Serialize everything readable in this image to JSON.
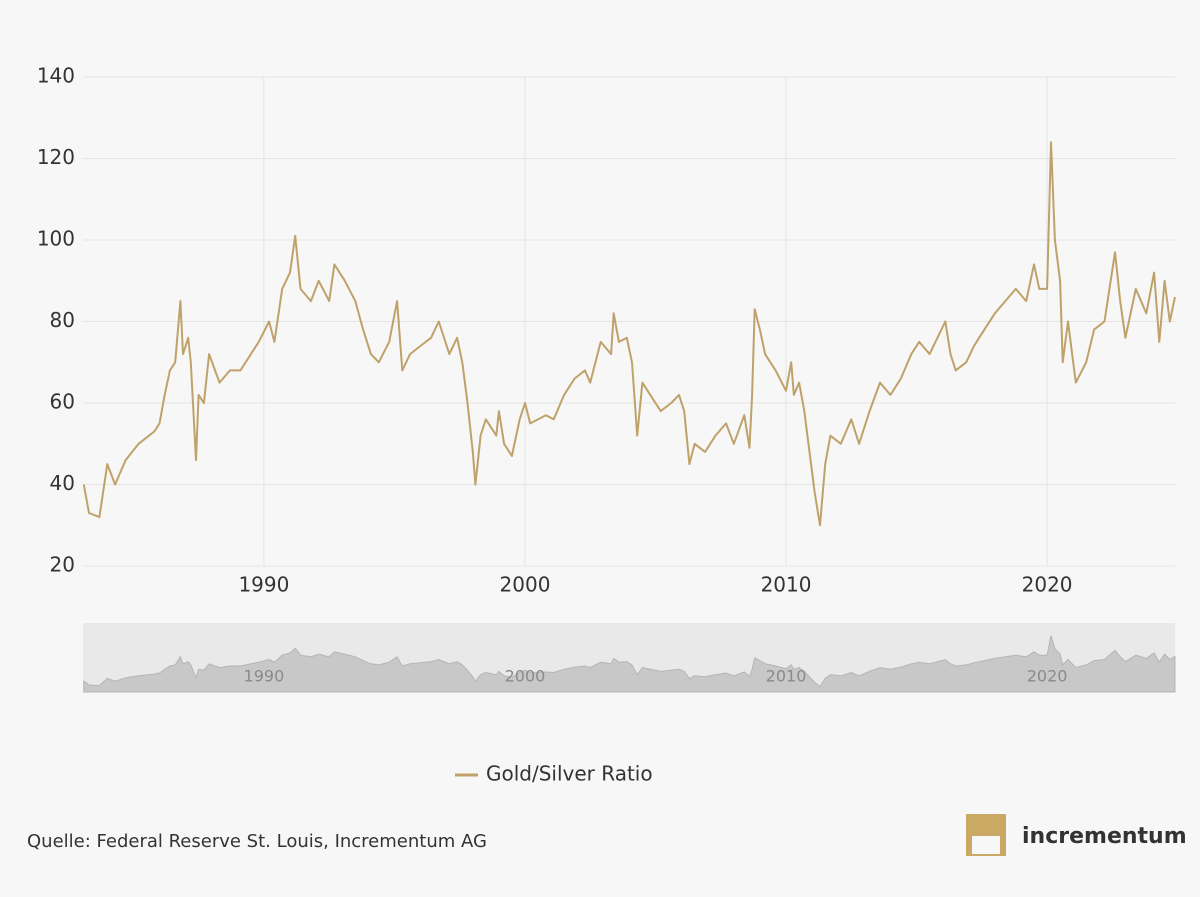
{
  "chart_data": {
    "type": "line",
    "xlim": [
      1983.07,
      2024.9
    ],
    "xticks": [
      1990,
      2000,
      2010,
      2020
    ],
    "ylim": [
      20,
      140
    ],
    "yticks": [
      20,
      40,
      60,
      80,
      100,
      120,
      140
    ],
    "grid": true,
    "legend": "bottom",
    "series": [
      {
        "name": "Gold/Silver Ratio",
        "color": "#bfa26a",
        "x": [
          1983.1,
          1983.3,
          1983.7,
          1984.0,
          1984.3,
          1984.7,
          1985.2,
          1985.8,
          1986.0,
          1986.2,
          1986.4,
          1986.6,
          1986.8,
          1986.9,
          1987.1,
          1987.2,
          1987.4,
          1987.5,
          1987.7,
          1987.9,
          1988.3,
          1988.7,
          1989.1,
          1989.5,
          1989.8,
          1990.2,
          1990.4,
          1990.7,
          1991.0,
          1991.2,
          1991.4,
          1991.8,
          1992.1,
          1992.5,
          1992.7,
          1993.1,
          1993.5,
          1993.8,
          1994.1,
          1994.4,
          1994.8,
          1995.1,
          1995.3,
          1995.6,
          1996.0,
          1996.4,
          1996.7,
          1997.1,
          1997.4,
          1997.6,
          1997.8,
          1998.0,
          1998.1,
          1998.3,
          1998.5,
          1998.9,
          1999.0,
          1999.2,
          1999.5,
          1999.8,
          2000.0,
          2000.2,
          2000.8,
          2001.1,
          2001.5,
          2001.9,
          2002.3,
          2002.5,
          2002.9,
          2003.3,
          2003.4,
          2003.6,
          2003.9,
          2004.1,
          2004.3,
          2004.5,
          2004.8,
          2005.2,
          2005.6,
          2005.9,
          2006.1,
          2006.3,
          2006.5,
          2006.9,
          2007.3,
          2007.7,
          2008.0,
          2008.4,
          2008.6,
          2008.7,
          2008.8,
          2009.0,
          2009.2,
          2009.6,
          2010.0,
          2010.2,
          2010.3,
          2010.5,
          2010.7,
          2010.9,
          2011.1,
          2011.3,
          2011.5,
          2011.7,
          2012.1,
          2012.5,
          2012.8,
          2013.0,
          2013.2,
          2013.6,
          2014.0,
          2014.4,
          2014.8,
          2015.1,
          2015.5,
          2016.1,
          2016.3,
          2016.5,
          2016.9,
          2017.2,
          2017.6,
          2018.0,
          2018.4,
          2018.8,
          2019.2,
          2019.5,
          2019.7,
          2020.0,
          2020.15,
          2020.3,
          2020.5,
          2020.6,
          2020.8,
          2021.1,
          2021.5,
          2021.8,
          2022.2,
          2022.6,
          2022.8,
          2023.0,
          2023.4,
          2023.8,
          2024.1,
          2024.3,
          2024.5,
          2024.7,
          2024.9
        ],
        "values": [
          40,
          33,
          32,
          45,
          40,
          46,
          50,
          53,
          55,
          62,
          68,
          70,
          85,
          72,
          76,
          70,
          46,
          62,
          60,
          72,
          65,
          68,
          68,
          72,
          75,
          80,
          75,
          88,
          92,
          101,
          88,
          85,
          90,
          85,
          94,
          90,
          85,
          78,
          72,
          70,
          75,
          85,
          68,
          72,
          74,
          76,
          80,
          72,
          76,
          70,
          60,
          48,
          40,
          52,
          56,
          52,
          58,
          50,
          47,
          56,
          60,
          55,
          57,
          56,
          62,
          66,
          68,
          65,
          75,
          72,
          82,
          75,
          76,
          70,
          52,
          65,
          62,
          58,
          60,
          62,
          58,
          45,
          50,
          48,
          52,
          55,
          50,
          57,
          49,
          62,
          83,
          78,
          72,
          68,
          63,
          70,
          62,
          65,
          58,
          48,
          38,
          30,
          45,
          52,
          50,
          56,
          50,
          54,
          58,
          65,
          62,
          66,
          72,
          75,
          72,
          80,
          72,
          68,
          70,
          74,
          78,
          82,
          85,
          88,
          85,
          94,
          88,
          88,
          124,
          100,
          90,
          70,
          80,
          65,
          70,
          78,
          80,
          97,
          85,
          76,
          88,
          82,
          92,
          75,
          90,
          80,
          86
        ]
      }
    ],
    "source": "Quelle: Federal Reserve St. Louis, Incrementum AG",
    "logo_text": "incrementum"
  }
}
